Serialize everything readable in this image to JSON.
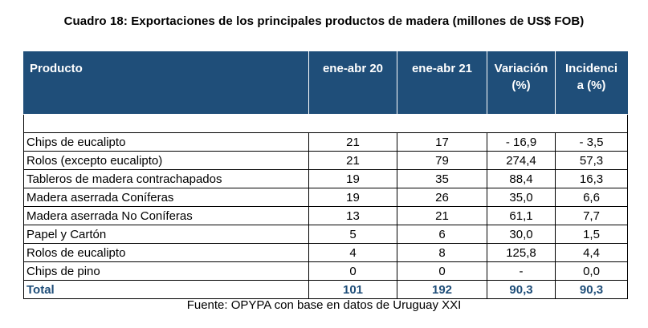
{
  "title": "Cuadro 18: Exportaciones de los principales productos de madera (millones de US$ FOB)",
  "headers": {
    "product": "Producto",
    "col1": "ene-abr 20",
    "col2": "ene-abr 21",
    "variation_line1": "Variación",
    "variation_line2": "(%)",
    "incidence_line1": "Incidenci",
    "incidence_line2": "a (%)"
  },
  "rows": [
    {
      "product": "Chips de eucalipto",
      "v20": "21",
      "v21": "17",
      "variation": "- 16,9",
      "incidence": "- 3,5"
    },
    {
      "product": "Rolos (excepto eucalipto)",
      "v20": "21",
      "v21": "79",
      "variation": "274,4",
      "incidence": "57,3"
    },
    {
      "product": "Tableros de madera contrachapados",
      "v20": "19",
      "v21": "35",
      "variation": "88,4",
      "incidence": "16,3"
    },
    {
      "product": "Madera aserrada Coníferas",
      "v20": "19",
      "v21": "26",
      "variation": "35,0",
      "incidence": "6,6"
    },
    {
      "product": "Madera aserrada No Coníferas",
      "v20": "13",
      "v21": "21",
      "variation": "61,1",
      "incidence": "7,7"
    },
    {
      "product": "Papel y Cartón",
      "v20": "5",
      "v21": "6",
      "variation": "30,0",
      "incidence": "1,5"
    },
    {
      "product": "Rolos de eucalipto",
      "v20": "4",
      "v21": "8",
      "variation": "125,8",
      "incidence": "4,4"
    },
    {
      "product": "Chips de pino",
      "v20": "0",
      "v21": "0",
      "variation": "-",
      "incidence": "0,0"
    }
  ],
  "total": {
    "product": "Total",
    "v20": "101",
    "v21": "192",
    "variation": "90,3",
    "incidence": "90,3"
  },
  "source": "Fuente: OPYPA con base en datos de Uruguay XXI",
  "colors": {
    "header_bg": "#1f4e79",
    "header_text": "#ffffff",
    "total_text": "#1f4e79"
  }
}
